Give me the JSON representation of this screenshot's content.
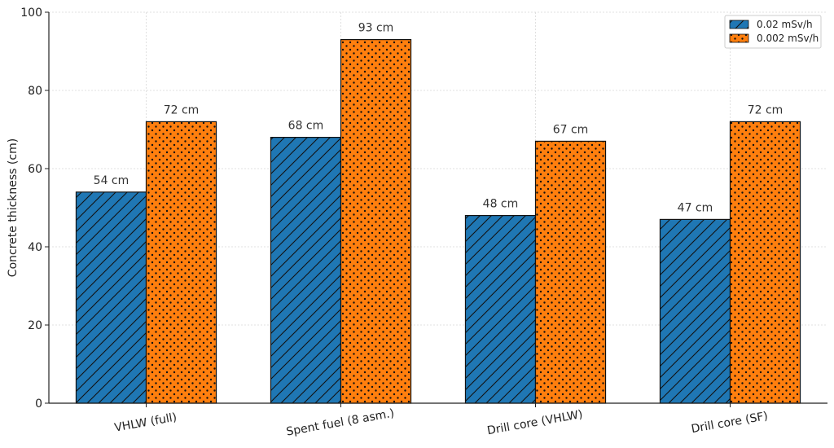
{
  "chart_data": {
    "type": "bar",
    "title": "",
    "xlabel": "",
    "ylabel": "Concrete thickness (cm)",
    "ylim": [
      0,
      100
    ],
    "yticks": [
      0,
      20,
      40,
      60,
      80,
      100
    ],
    "grid": true,
    "legend_position": "top-right",
    "categories": [
      "VHLW (full)",
      "Spent fuel (8 asm.)",
      "Drill core (VHLW)",
      "Drill core (SF)"
    ],
    "series": [
      {
        "name": "0.02 mSv/h",
        "values": [
          54,
          68,
          48,
          47
        ],
        "labels": [
          "54 cm",
          "68 cm",
          "48 cm",
          "47 cm"
        ],
        "color": "#1f77b4",
        "hatch": "diagonal"
      },
      {
        "name": "0.002 mSv/h",
        "values": [
          72,
          93,
          67,
          72
        ],
        "labels": [
          "72 cm",
          "93 cm",
          "67 cm",
          "72 cm"
        ],
        "color": "#ff7f0e",
        "hatch": "dots"
      }
    ]
  }
}
